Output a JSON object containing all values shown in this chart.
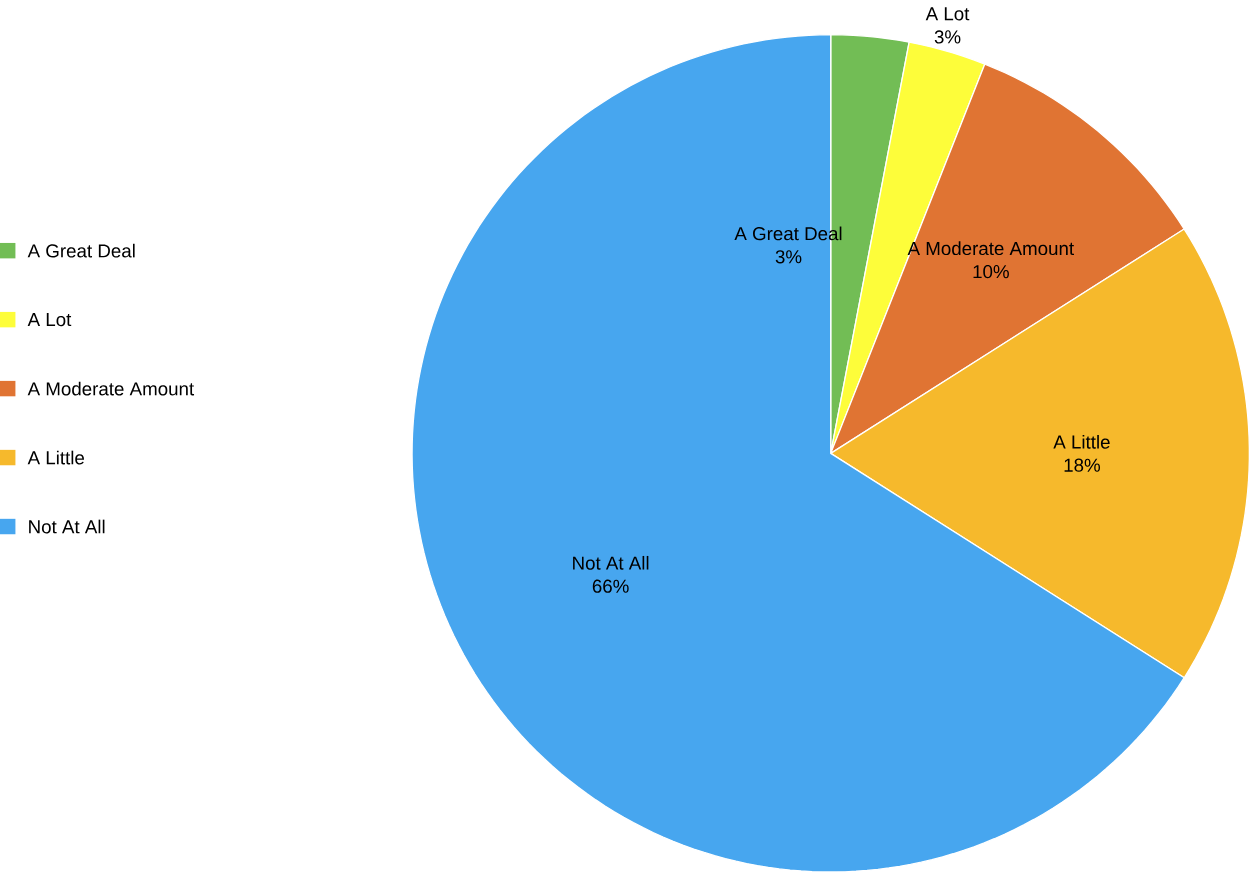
{
  "chart_data": {
    "type": "pie",
    "categories": [
      "A Great Deal",
      "A Lot",
      "A Moderate Amount",
      "A Little",
      "Not At All"
    ],
    "values": [
      3,
      3,
      10,
      18,
      66
    ],
    "value_labels": [
      "3%",
      "3%",
      "10%",
      "18%",
      "66%"
    ],
    "colors": [
      "#72bd55",
      "#fdfd3a",
      "#e07433",
      "#f6b92c",
      "#47a6ef"
    ],
    "legend": "left"
  }
}
